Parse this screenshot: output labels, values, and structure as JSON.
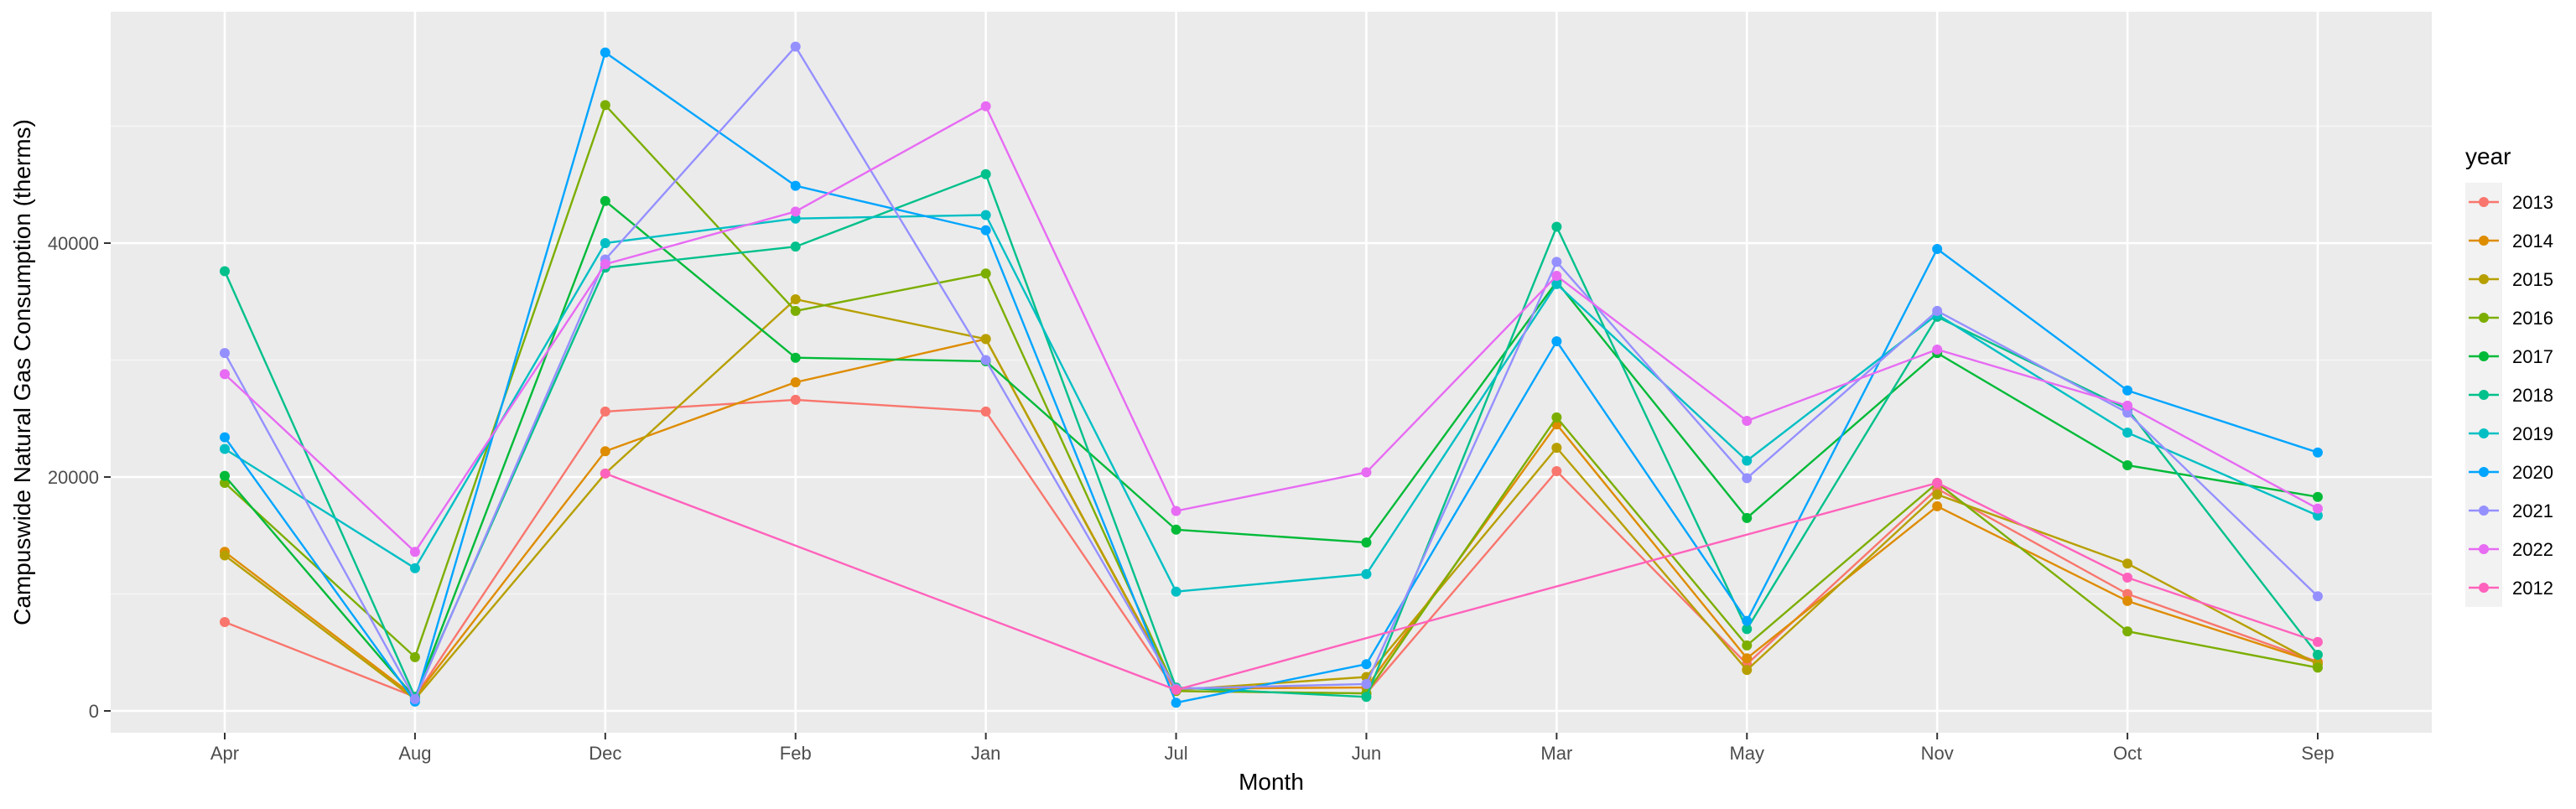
{
  "chart_data": {
    "type": "line",
    "xlabel": "Month",
    "ylabel": "Campuswide Natural Gas Consumption (therms)",
    "categories": [
      "Apr",
      "Aug",
      "Dec",
      "Feb",
      "Jan",
      "Jul",
      "Jun",
      "Mar",
      "May",
      "Nov",
      "Oct",
      "Sep"
    ],
    "yticks": [
      0,
      20000,
      40000
    ],
    "ytick_labels": [
      "0",
      "20000",
      "40000"
    ],
    "ylim": [
      -2000,
      60000
    ],
    "grid": true,
    "legend": {
      "title": "year",
      "placement": "right"
    },
    "series": [
      {
        "name": "2013",
        "color": "#F8766D",
        "values": [
          7600,
          1200,
          25600,
          26600,
          25600,
          1700,
          1500,
          20500,
          4000,
          19000,
          10000,
          4200
        ]
      },
      {
        "name": "2014",
        "color": "#DE8C00",
        "values": [
          13600,
          1200,
          22200,
          28100,
          31800,
          1900,
          2000,
          24500,
          4500,
          17500,
          9400,
          4100
        ]
      },
      {
        "name": "2015",
        "color": "#B79F00",
        "values": [
          13300,
          1000,
          20300,
          35200,
          31800,
          1800,
          2900,
          22500,
          3500,
          18500,
          12600,
          4000
        ]
      },
      {
        "name": "2016",
        "color": "#7CAE00",
        "values": [
          19500,
          4600,
          51800,
          34200,
          37400,
          1700,
          1500,
          25100,
          5600,
          19500,
          6800,
          3700
        ]
      },
      {
        "name": "2017",
        "color": "#00BA38",
        "values": [
          20100,
          1100,
          43600,
          30200,
          29900,
          15500,
          14400,
          36700,
          16500,
          30600,
          21000,
          18300
        ]
      },
      {
        "name": "2018",
        "color": "#00C08B",
        "values": [
          37600,
          1200,
          37900,
          39700,
          45900,
          2000,
          1200,
          41400,
          7000,
          33700,
          25800,
          4800
        ]
      },
      {
        "name": "2019",
        "color": "#00BFC4",
        "values": [
          22400,
          12200,
          40000,
          42100,
          42400,
          10200,
          11700,
          36500,
          21400,
          33900,
          23800,
          16700
        ]
      },
      {
        "name": "2020",
        "color": "#00A5FF",
        "values": [
          23400,
          800,
          56300,
          44900,
          41100,
          700,
          4000,
          31600,
          7700,
          39500,
          27400,
          22100
        ]
      },
      {
        "name": "2021",
        "color": "#9590FF",
        "values": [
          30600,
          1000,
          38600,
          56800,
          30000,
          1900,
          2300,
          38400,
          19900,
          34200,
          25500,
          9800
        ]
      },
      {
        "name": "2022",
        "color": "#E76BF3",
        "values": [
          28800,
          13600,
          38200,
          42700,
          51700,
          17100,
          20400,
          37200,
          24800,
          30900,
          26100,
          17300
        ]
      },
      {
        "name": "2012",
        "color": "#FF62BC",
        "values": [
          null,
          null,
          20300,
          null,
          null,
          1800,
          null,
          null,
          null,
          19500,
          11400,
          5900
        ]
      }
    ]
  }
}
